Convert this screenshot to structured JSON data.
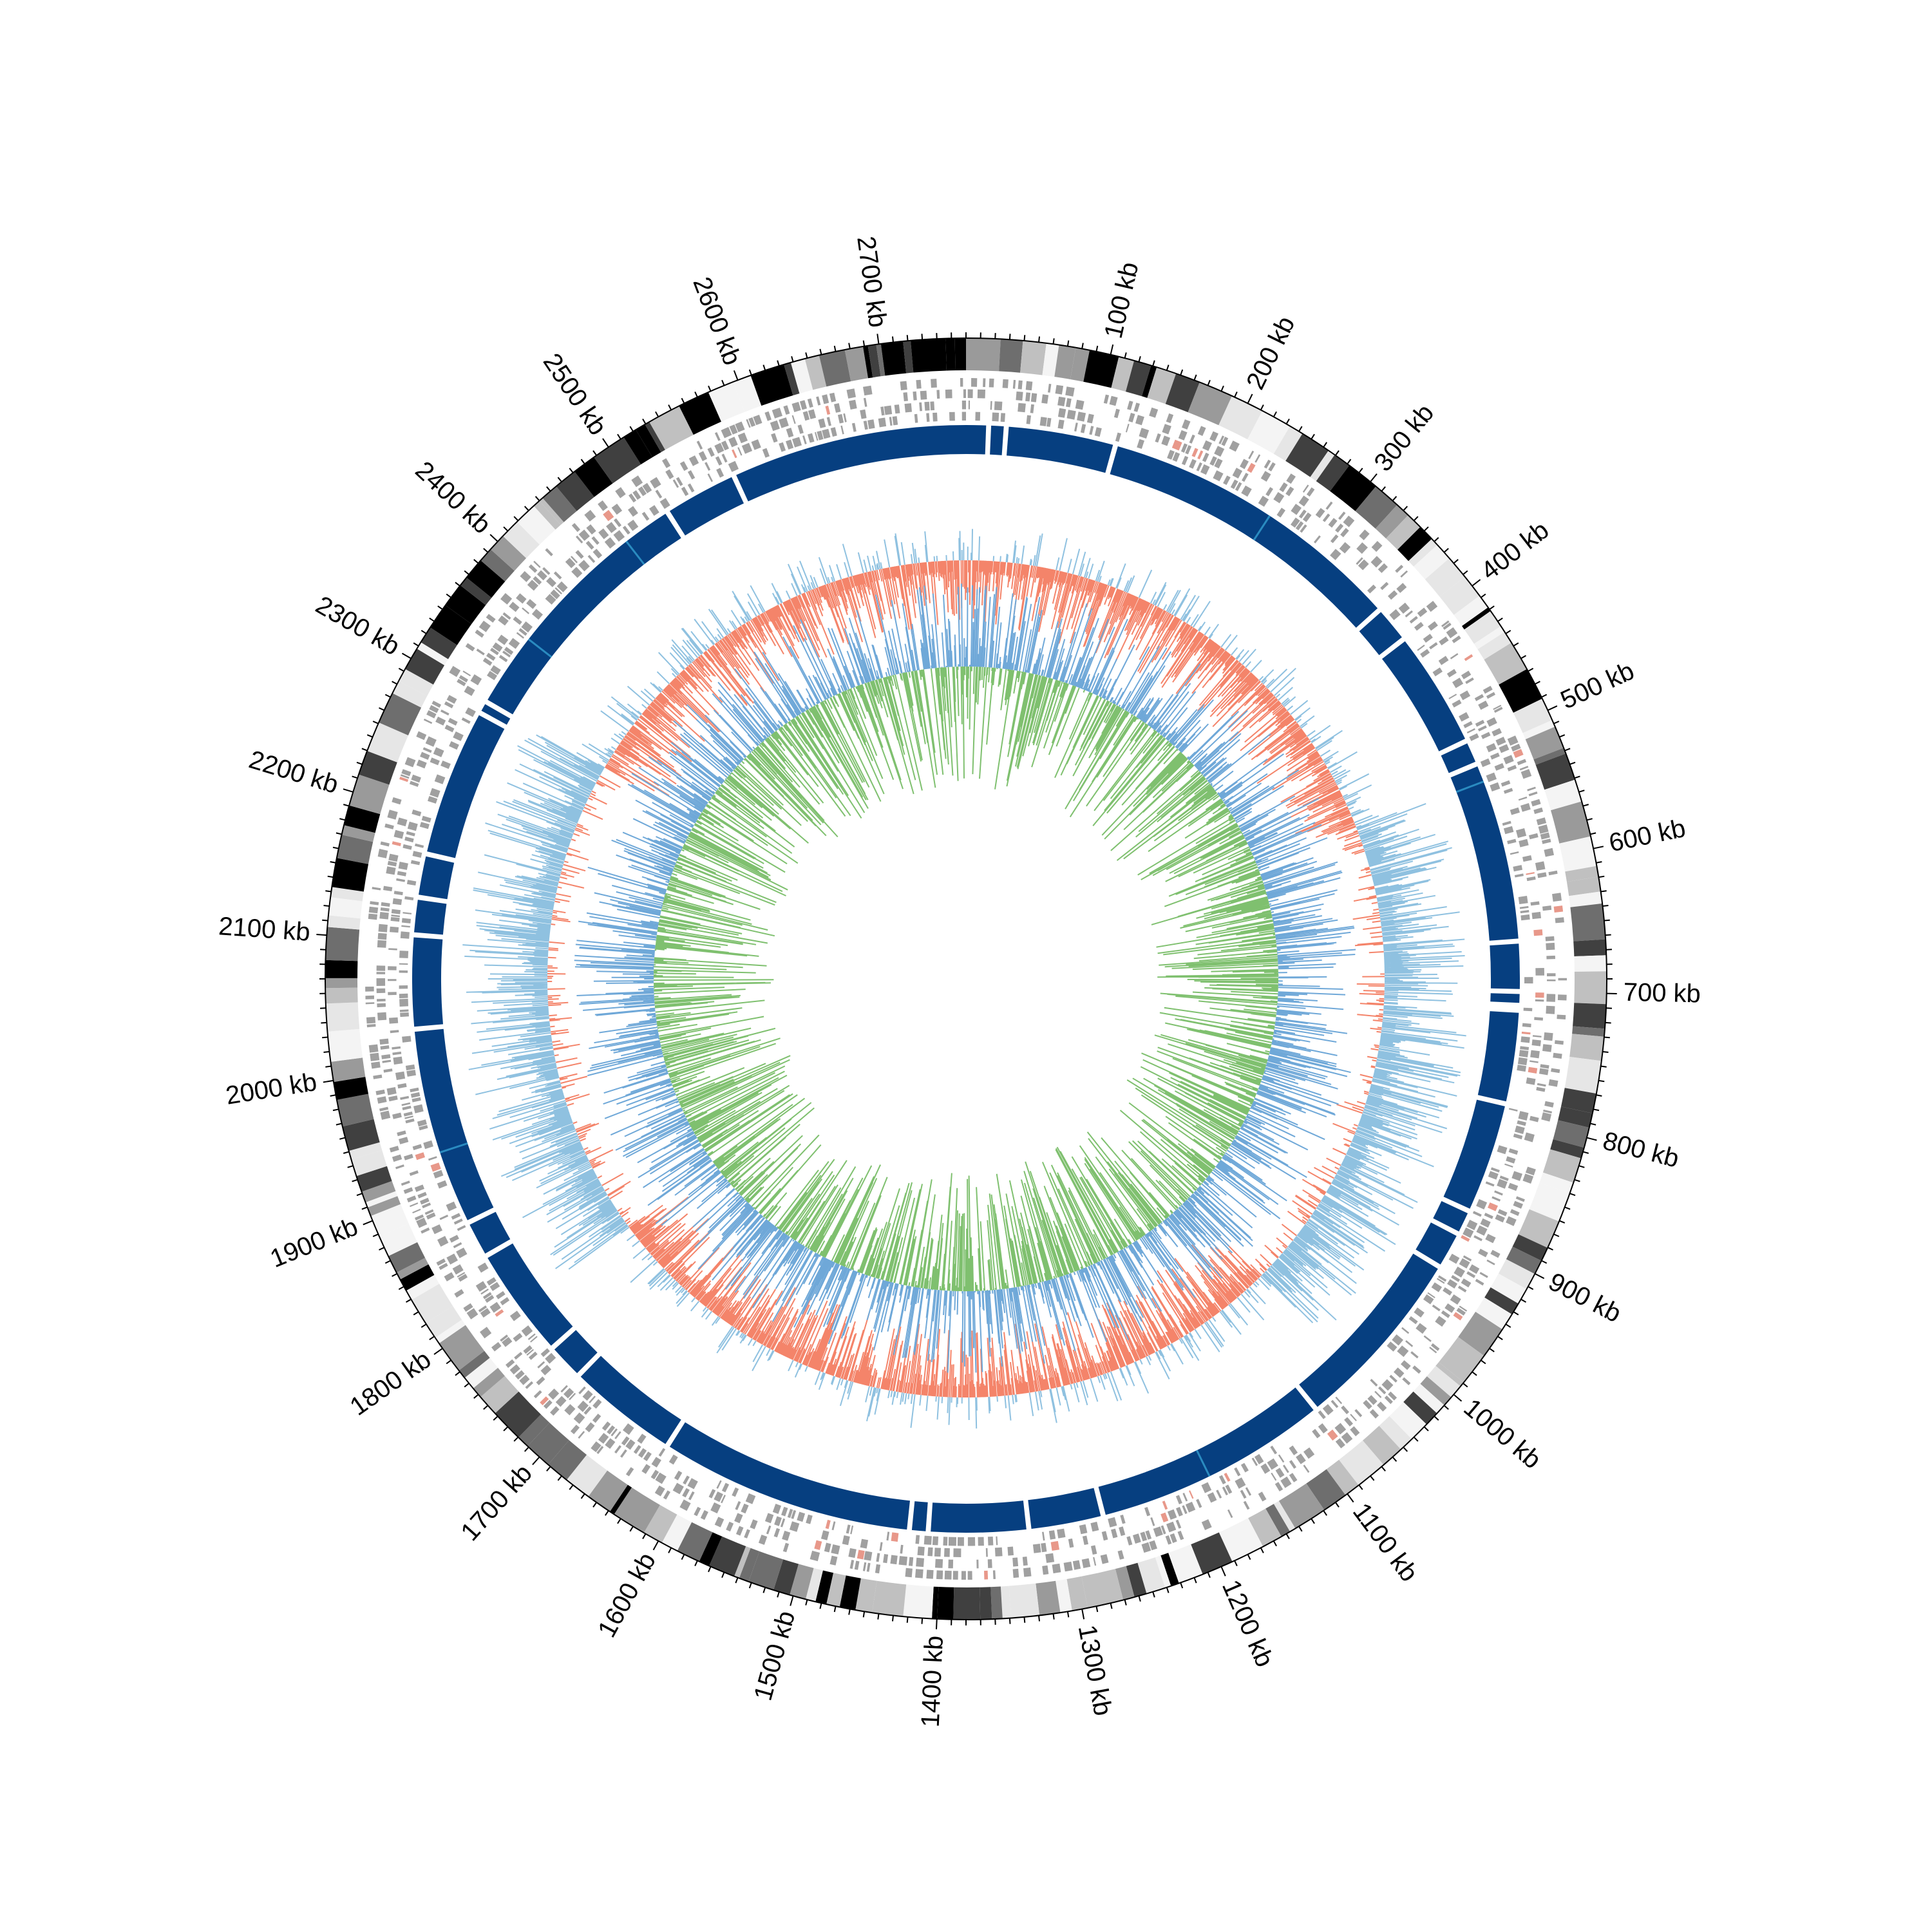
{
  "chart_data": {
    "type": "circular-genome-map",
    "genome_length_kb": 2760,
    "axis": {
      "unit": "kb",
      "major_ticks": [
        {
          "position_kb": 100,
          "label": "100 kb"
        },
        {
          "position_kb": 200,
          "label": "200 kb"
        },
        {
          "position_kb": 300,
          "label": "300 kb"
        },
        {
          "position_kb": 400,
          "label": "400 kb"
        },
        {
          "position_kb": 500,
          "label": "500 kb"
        },
        {
          "position_kb": 600,
          "label": "600 kb"
        },
        {
          "position_kb": 700,
          "label": "700 kb"
        },
        {
          "position_kb": 800,
          "label": "800 kb"
        },
        {
          "position_kb": 900,
          "label": "900 kb"
        },
        {
          "position_kb": 1000,
          "label": "1000 kb"
        },
        {
          "position_kb": 1100,
          "label": "1100 kb"
        },
        {
          "position_kb": 1200,
          "label": "1200 kb"
        },
        {
          "position_kb": 1300,
          "label": "1300 kb"
        },
        {
          "position_kb": 1400,
          "label": "1400 kb"
        },
        {
          "position_kb": 1500,
          "label": "1500 kb"
        },
        {
          "position_kb": 1600,
          "label": "1600 kb"
        },
        {
          "position_kb": 1700,
          "label": "1700 kb"
        },
        {
          "position_kb": 1800,
          "label": "1800 kb"
        },
        {
          "position_kb": 1900,
          "label": "1900 kb"
        },
        {
          "position_kb": 2000,
          "label": "2000 kb"
        },
        {
          "position_kb": 2100,
          "label": "2100 kb"
        },
        {
          "position_kb": 2200,
          "label": "2200 kb"
        },
        {
          "position_kb": 2300,
          "label": "2300 kb"
        },
        {
          "position_kb": 2400,
          "label": "2400 kb"
        },
        {
          "position_kb": 2500,
          "label": "2500 kb"
        },
        {
          "position_kb": 2600,
          "label": "2600 kb"
        },
        {
          "position_kb": 2700,
          "label": "2700 kb"
        }
      ],
      "minor_tick_step_kb": 10
    },
    "tracks": [
      {
        "id": "ideogram",
        "kind": "bands",
        "colors": [
          "#000000",
          "#404040",
          "#6e6e6e",
          "#9a9a9a",
          "#c0c0c0",
          "#e6e6e6",
          "#f4f4f4"
        ]
      },
      {
        "id": "genes",
        "kind": "gene-blocks",
        "color": "#a0a0a0",
        "highlight_color": "#e8988a"
      },
      {
        "id": "synteny",
        "kind": "segments",
        "color": "#063f80",
        "accent_color": "#2a8bc0",
        "gap_positions_kb": [
          18,
          32,
          120,
          370,
          400,
          495,
          515,
          660,
          700,
          711,
          715,
          790,
          880,
          900,
          930,
          1080,
          1270,
          1330,
          1410,
          1425,
          1630,
          1720,
          1750,
          1840,
          1870,
          2030,
          2105,
          2135,
          2170,
          2290,
          2300,
          2510,
          2570
        ]
      },
      {
        "id": "histogram-outer",
        "kind": "bidirectional-histogram",
        "positive_color": "#f4846a",
        "negative_color": "#8fc1e0"
      },
      {
        "id": "histogram-inner",
        "kind": "bidirectional-histogram",
        "positive_color": "#7fc06f",
        "negative_color": "#6fa8d8"
      }
    ]
  }
}
